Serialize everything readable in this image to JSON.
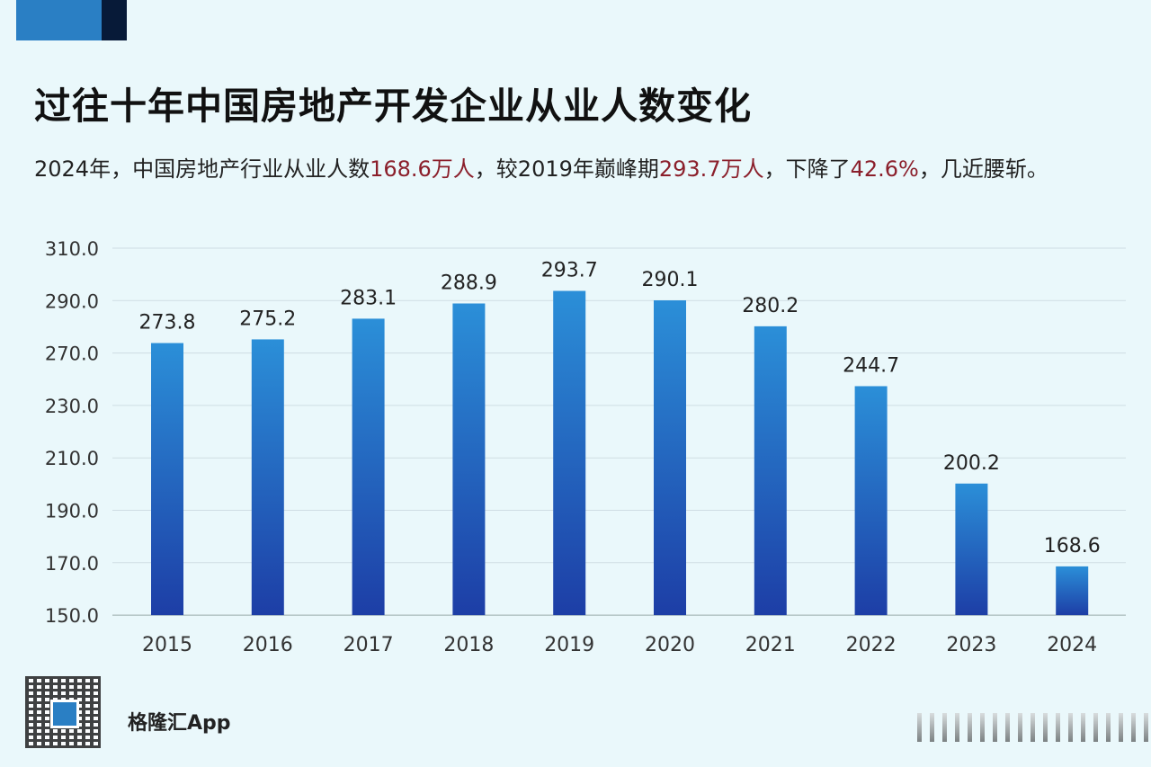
{
  "title": "过往十年中国房地产开发企业从业人数变化",
  "subtitle": {
    "p1": "2024年，中国房地产行业从业人数",
    "v1": "168.6万人",
    "p2": "，较2019年巅峰期",
    "v2": "293.7万人",
    "p3": "，下降了",
    "v3": "42.6%",
    "p4": "，几近腰斩。"
  },
  "highlight_color": "#8b1f2b",
  "brand": "格隆汇App",
  "chart_data": {
    "type": "bar",
    "categories": [
      "2015",
      "2016",
      "2017",
      "2018",
      "2019",
      "2020",
      "2021",
      "2022",
      "2023",
      "2024"
    ],
    "values": [
      273.8,
      275.2,
      283.1,
      288.9,
      293.7,
      290.1,
      280.2,
      244.7,
      200.2,
      168.6
    ],
    "y_ticks": [
      "310.0",
      "290.0",
      "270.0",
      "230.0",
      "210.0",
      "190.0",
      "170.0",
      "150.0"
    ],
    "ylim": [
      150,
      310
    ],
    "grid": true,
    "bar_color_top": "#2b8fd8",
    "bar_color_bottom": "#1d3ea6"
  }
}
